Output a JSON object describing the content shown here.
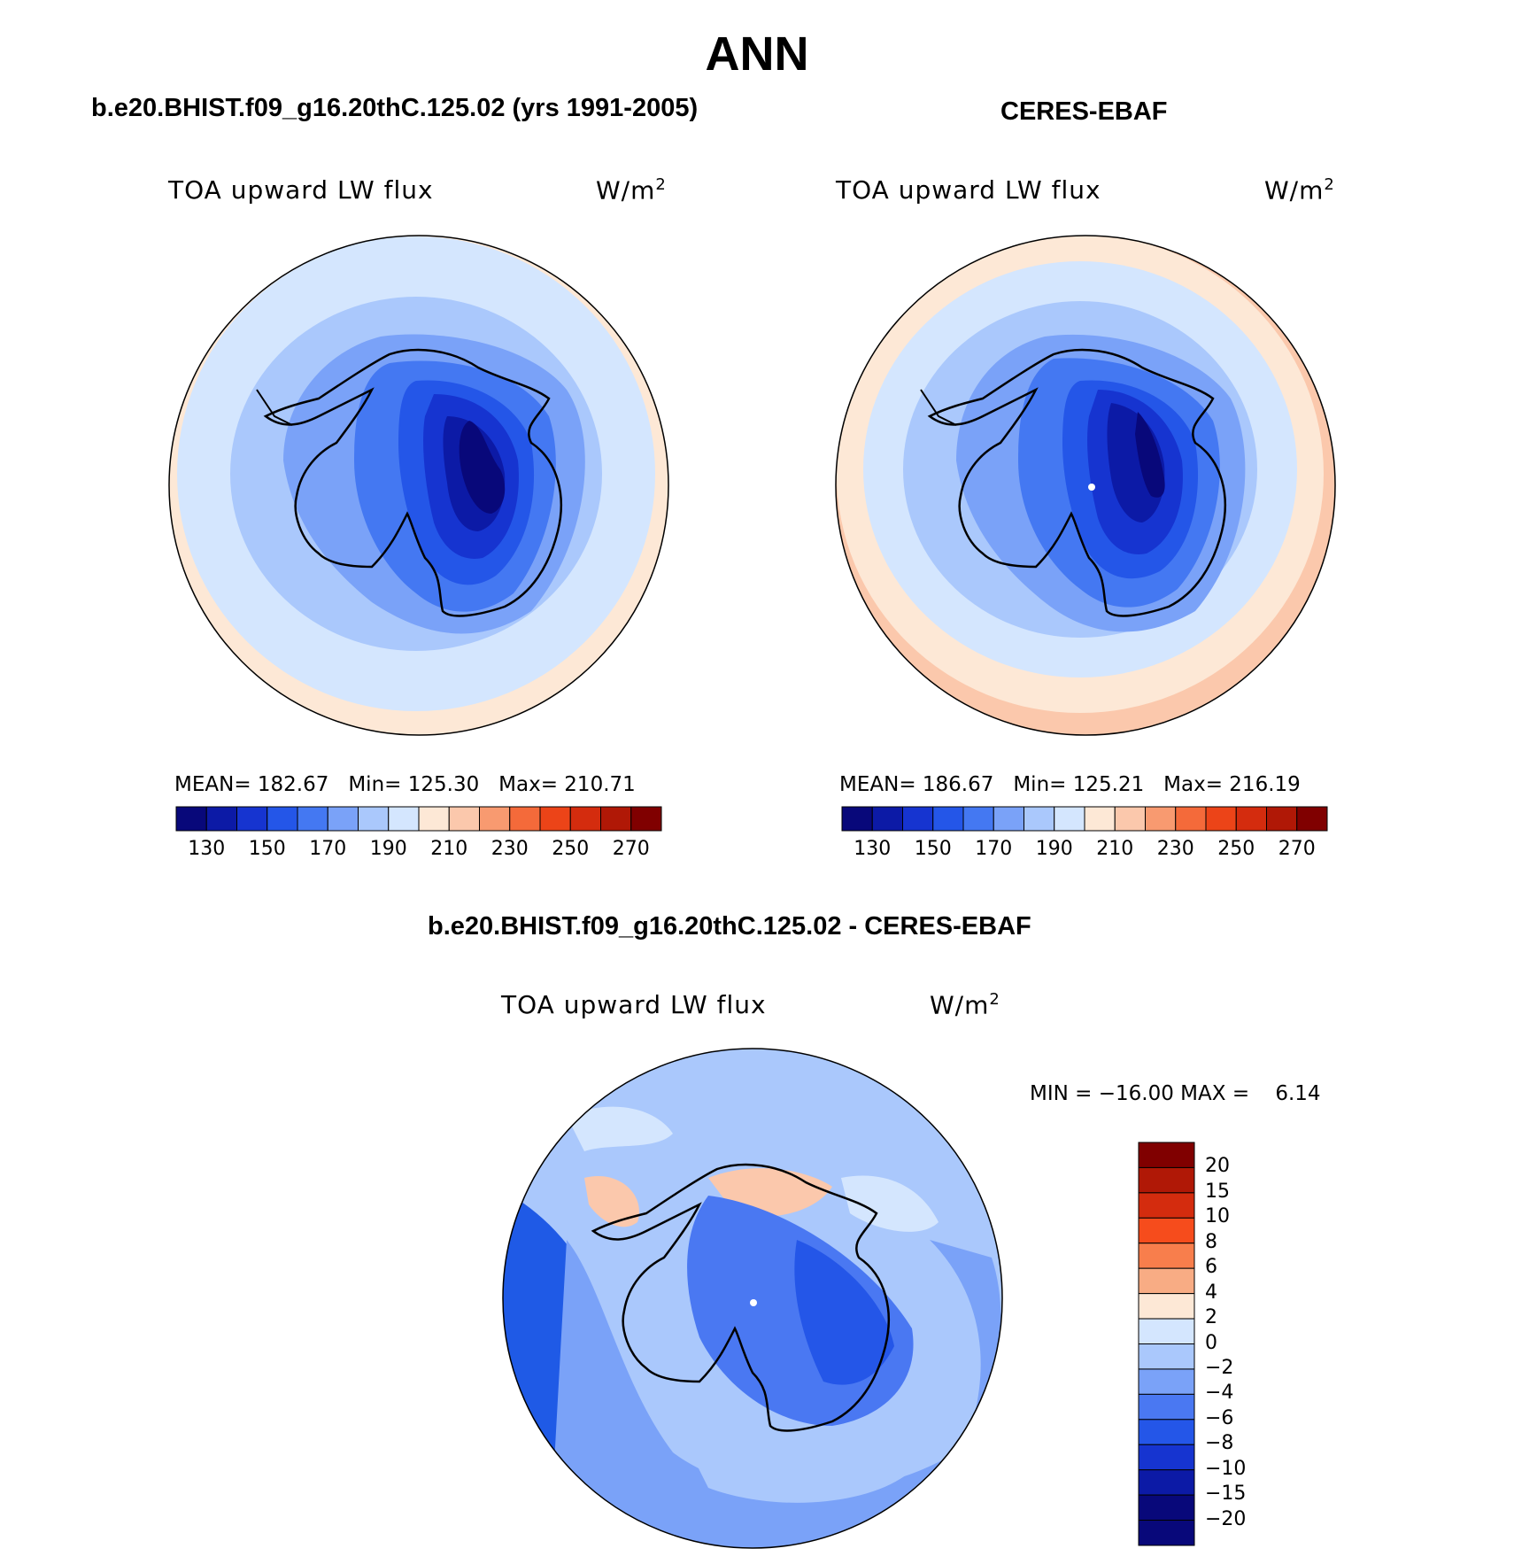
{
  "title": "ANN",
  "panels": [
    {
      "id": "model",
      "title": "b.e20.BHIST.f09_g16.20thC.125.02 (yrs 1991-2005)",
      "variable": "TOA upward LW flux",
      "units": "W/m",
      "units_sup": "2",
      "stats": {
        "mean_label": "MEAN=",
        "mean": "182.67",
        "min_label": "Min=",
        "min": "125.30",
        "max_label": "Max=",
        "max": "210.71"
      }
    },
    {
      "id": "obs",
      "title": "CERES-EBAF",
      "variable": "TOA upward LW flux",
      "units": "W/m",
      "units_sup": "2",
      "stats": {
        "mean_label": "MEAN=",
        "mean": "186.67",
        "min_label": "Min=",
        "min": "125.21",
        "max_label": "Max=",
        "max": "216.19"
      }
    },
    {
      "id": "diff",
      "title": "b.e20.BHIST.f09_g16.20thC.125.02 - CERES-EBAF",
      "variable": "TOA upward LW flux",
      "units": "W/m",
      "units_sup": "2",
      "stats": {
        "min_label": "MIN =",
        "min": "−16.00",
        "max_label": "MAX =",
        "max": "6.14"
      }
    }
  ],
  "colorbar_abs": {
    "colors": [
      "#08087a",
      "#0c1aa6",
      "#1634d0",
      "#2456e8",
      "#4478f2",
      "#7aa2f8",
      "#aac8fc",
      "#d4e6fe",
      "#fde8d6",
      "#fbc8ac",
      "#f89a70",
      "#f46a3a",
      "#ec4418",
      "#d42c0e",
      "#b01806",
      "#800000"
    ],
    "labels": [
      "130",
      "150",
      "170",
      "190",
      "210",
      "230",
      "250",
      "270"
    ]
  },
  "colorbar_diff": {
    "colors": [
      "#800000",
      "#b01806",
      "#d42c0e",
      "#f64c1c",
      "#f87e4c",
      "#f8ac84",
      "#fde8d6",
      "#d4e6fe",
      "#aac8fc",
      "#7aa2f8",
      "#4a78f2",
      "#2456e8",
      "#1634d0",
      "#0c1aa6",
      "#08087a",
      "#08087a"
    ],
    "labels": [
      "20",
      "15",
      "10",
      "8",
      "6",
      "4",
      "2",
      "0",
      "−2",
      "−4",
      "−6",
      "−8",
      "−10",
      "−15",
      "−20"
    ]
  },
  "chart_data": {
    "type": "heatmap",
    "projection": "south-polar-stereographic",
    "fields": [
      {
        "name": "b.e20.BHIST.f09_g16.20thC.125.02 (yrs 1991-2005)",
        "mean": 182.67,
        "min": 125.3,
        "max": 210.71
      },
      {
        "name": "CERES-EBAF",
        "mean": 186.67,
        "min": 125.21,
        "max": 216.19
      },
      {
        "name": "b.e20.BHIST.f09_g16.20thC.125.02 - CERES-EBAF",
        "min": -16.0,
        "max": 6.14
      }
    ],
    "colorbar_levels_abs": [
      130,
      140,
      150,
      160,
      170,
      180,
      190,
      200,
      210,
      220,
      230,
      240,
      250,
      260,
      270
    ],
    "colorbar_levels_diff": [
      20,
      15,
      10,
      8,
      6,
      4,
      2,
      0,
      -2,
      -4,
      -6,
      -8,
      -10,
      -15,
      -20
    ]
  }
}
